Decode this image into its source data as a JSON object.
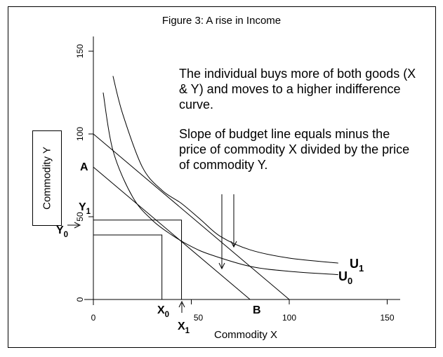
{
  "figure": {
    "title": "Figure 3:  A rise in Income",
    "note_line1": "The individual buys more of both goods (X & Y) and moves to a higher indifference curve.",
    "note_line2": "Slope of budget line equals minus the price of commodity X divided by the price of commodity Y.",
    "x_axis_label": "Commodity X",
    "y_axis_label": "Commodity Y"
  },
  "chart_data": {
    "type": "line",
    "x_ticks": [
      "0",
      "50",
      "100",
      "150"
    ],
    "y_ticks": [
      "0",
      "50",
      "100",
      "150"
    ],
    "xlim": [
      0,
      150
    ],
    "ylim": [
      0,
      150
    ],
    "grid": false,
    "budget_lines": [
      {
        "label_intercept_y": "A",
        "label_intercept_x": "B",
        "x": [
          0,
          80
        ],
        "y": [
          80,
          0
        ]
      },
      {
        "label_intercept_y": "",
        "label_intercept_x": "",
        "x": [
          0,
          100
        ],
        "y": [
          100,
          0
        ]
      }
    ],
    "indifference_curves": [
      {
        "name": "U0",
        "label_main": "U",
        "label_sub": "0",
        "points": [
          [
            5,
            125
          ],
          [
            10,
            90
          ],
          [
            20,
            62
          ],
          [
            30,
            48
          ],
          [
            40,
            39
          ],
          [
            50,
            32
          ],
          [
            60,
            27
          ],
          [
            80,
            20
          ],
          [
            100,
            17
          ],
          [
            125,
            15
          ]
        ]
      },
      {
        "name": "U1",
        "label_main": "U",
        "label_sub": "1",
        "points": [
          [
            10,
            135
          ],
          [
            15,
            112
          ],
          [
            25,
            80
          ],
          [
            35,
            66
          ],
          [
            45,
            58
          ],
          [
            55,
            48
          ],
          [
            65,
            38
          ],
          [
            80,
            30
          ],
          [
            100,
            25
          ],
          [
            125,
            22
          ]
        ]
      }
    ],
    "initial_bundle": {
      "label_x_main": "X",
      "label_x_sub": "0",
      "label_y_main": "Y",
      "label_y_sub": "0",
      "x": 35,
      "y": 39
    },
    "new_bundle": {
      "label_x_main": "X",
      "label_x_sub": "1",
      "label_y_main": "Y",
      "label_y_sub": "1",
      "x": 45,
      "y": 48
    }
  }
}
